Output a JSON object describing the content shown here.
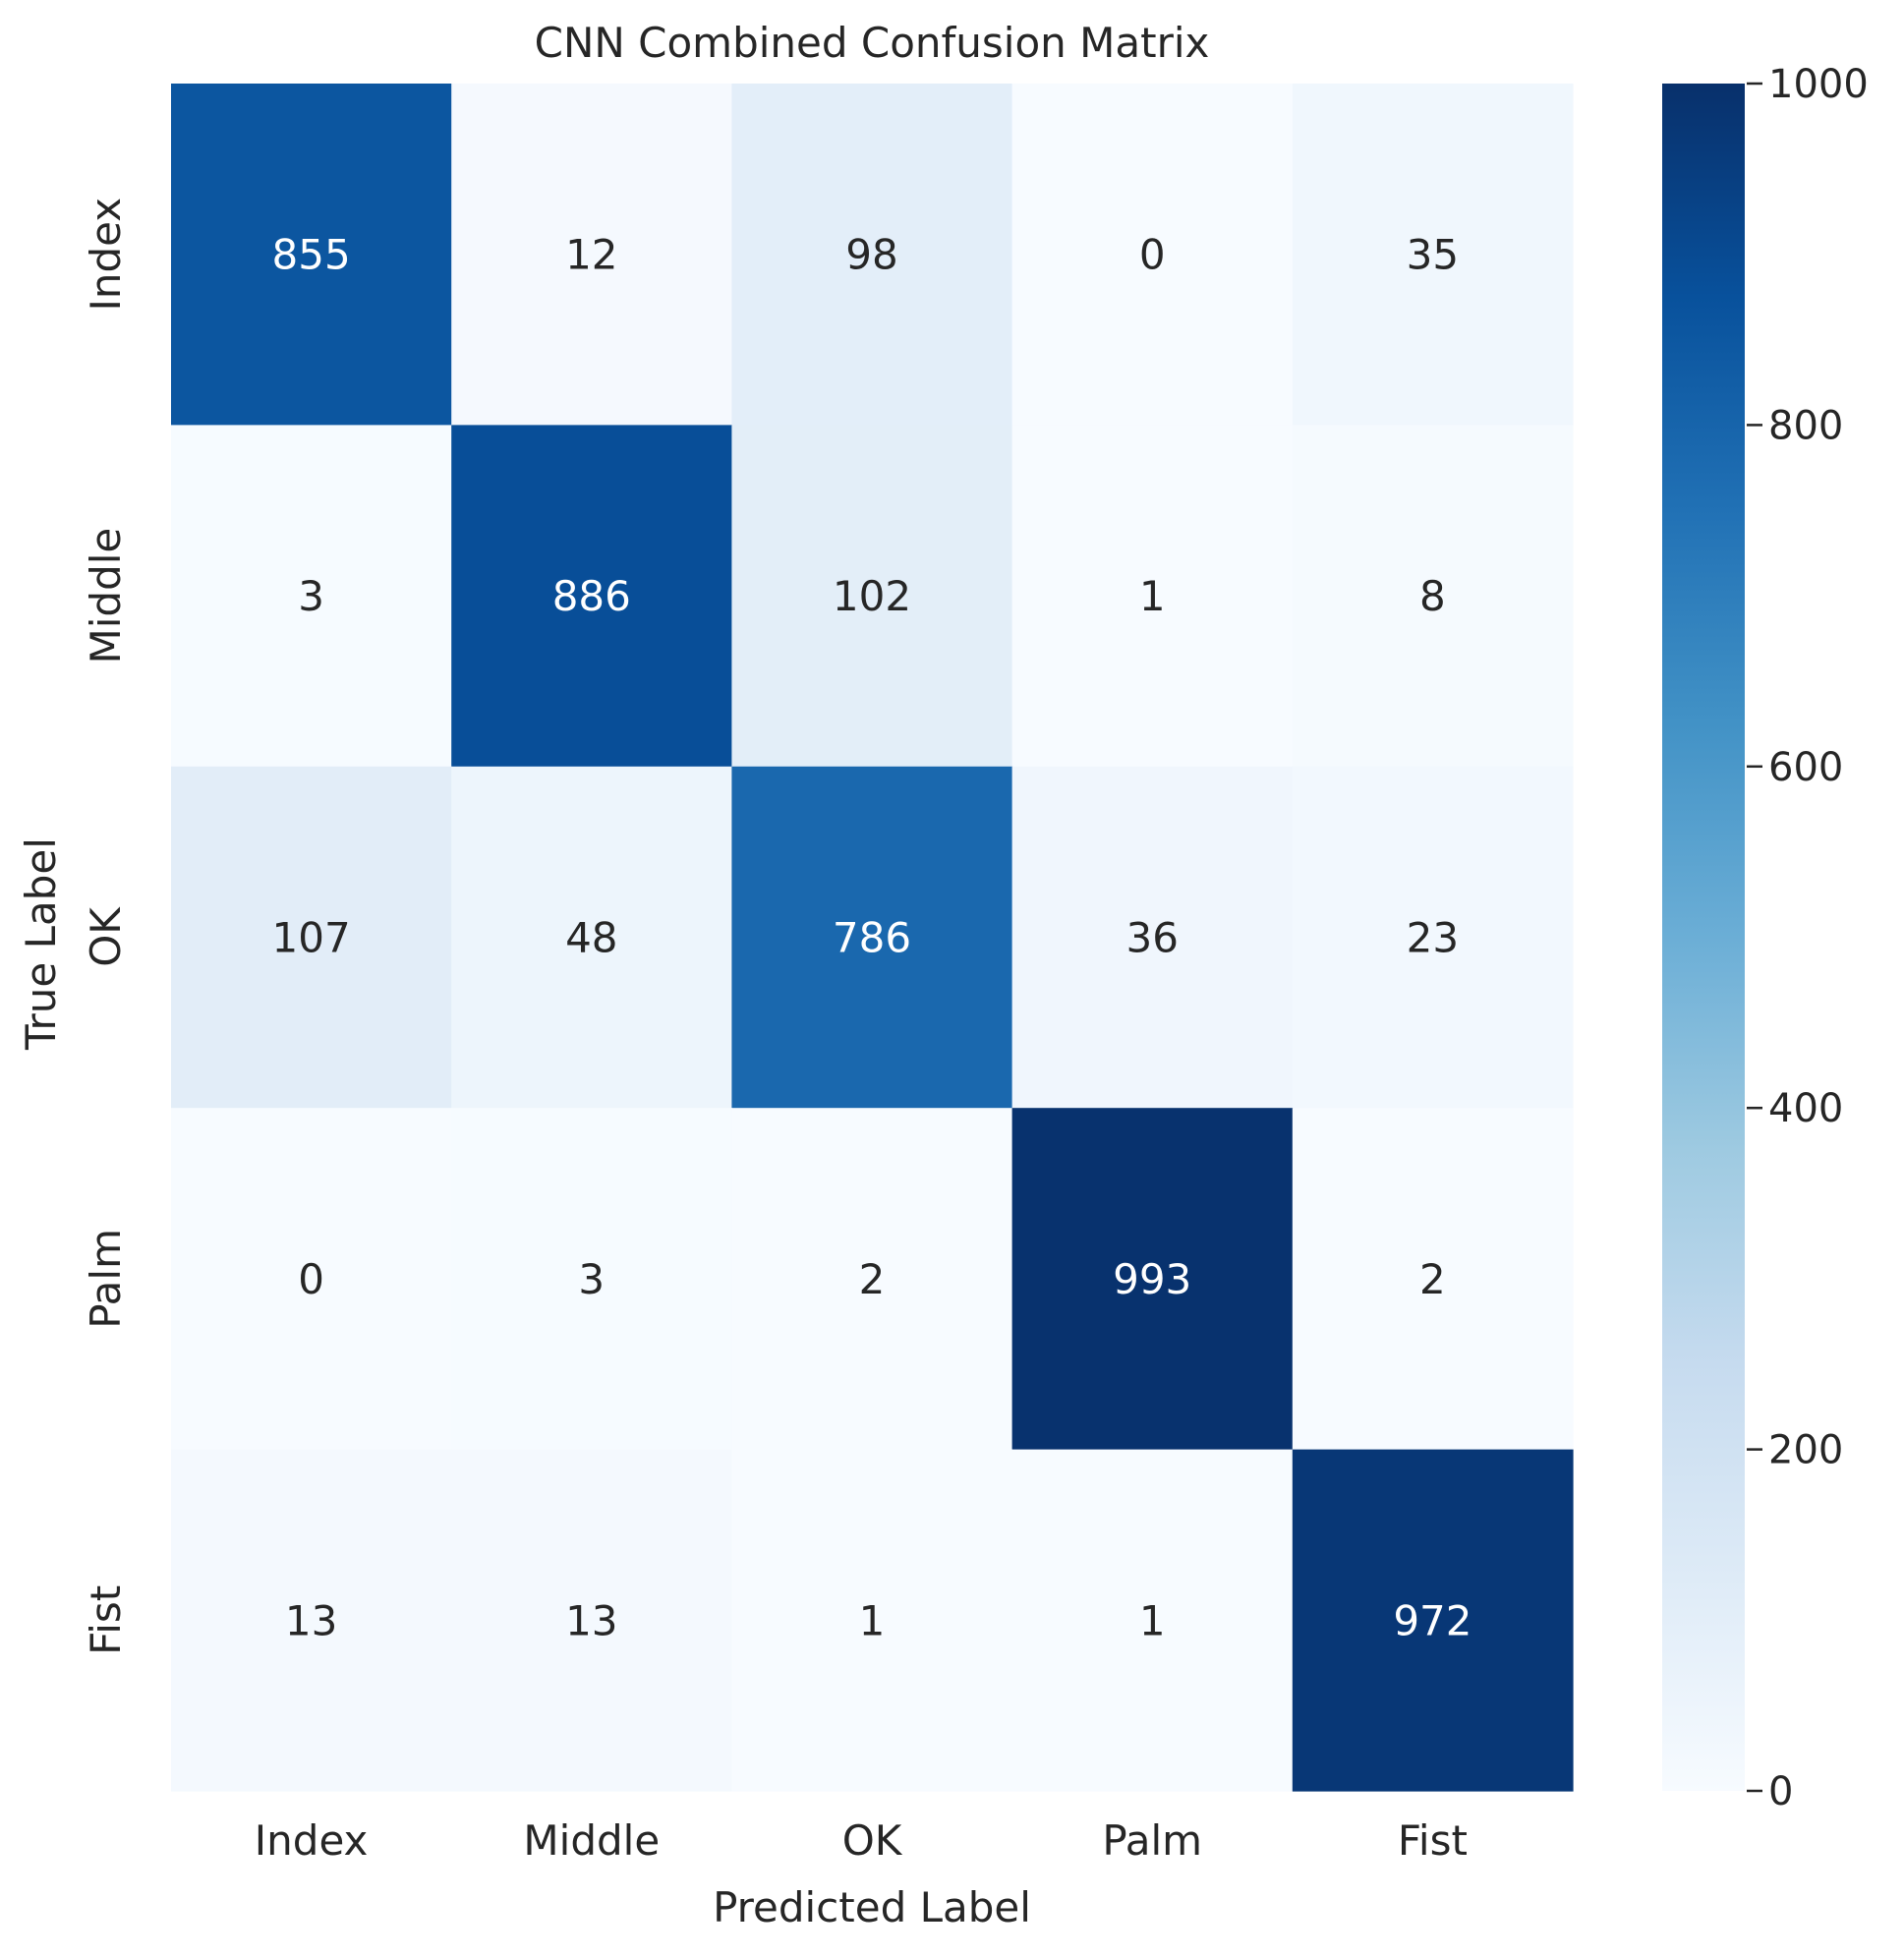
{
  "chart_data": {
    "type": "heatmap",
    "title": "CNN Combined Confusion Matrix",
    "xlabel": "Predicted Label",
    "ylabel": "True Label",
    "x_categories": [
      "Index",
      "Middle",
      "OK",
      "Palm",
      "Fist"
    ],
    "y_categories": [
      "Index",
      "Middle",
      "OK",
      "Palm",
      "Fist"
    ],
    "matrix": [
      [
        855,
        12,
        98,
        0,
        35
      ],
      [
        3,
        886,
        102,
        1,
        8
      ],
      [
        107,
        48,
        786,
        36,
        23
      ],
      [
        0,
        3,
        2,
        993,
        2
      ],
      [
        13,
        13,
        1,
        1,
        972
      ]
    ],
    "colormap": "Blues",
    "colormap_stops": [
      "#f7fbff",
      "#deebf7",
      "#c6dbef",
      "#9ecae1",
      "#6baed6",
      "#4292c6",
      "#2171b5",
      "#08519c",
      "#08306b"
    ],
    "color_range": [
      0,
      1000
    ],
    "colorbar_ticks": [
      0,
      200,
      400,
      600,
      800,
      1000
    ],
    "colorbar_tick_labels": [
      "0",
      "200",
      "400",
      "600",
      "800",
      "1000"
    ],
    "label_color_dark": "#262626",
    "label_color_light": "#ffffff"
  }
}
